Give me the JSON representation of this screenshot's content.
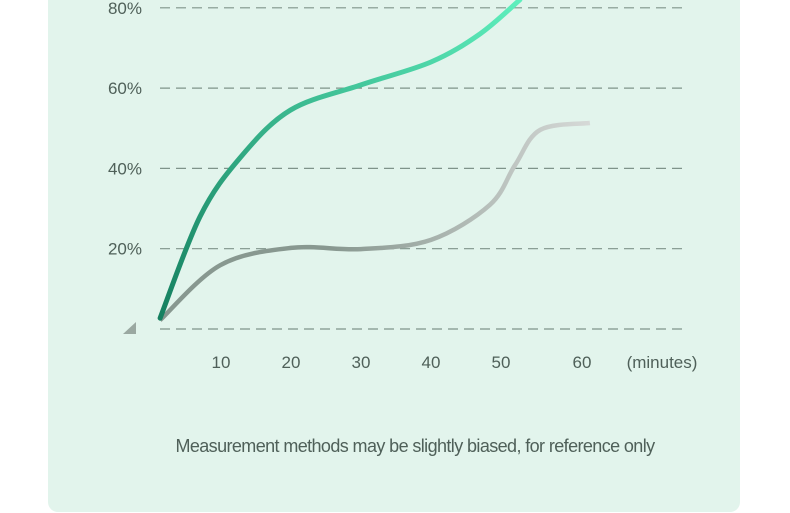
{
  "chart_data": {
    "type": "line",
    "title": "",
    "xlabel": "(minutes)",
    "ylabel": "",
    "xlim": [
      0,
      60
    ],
    "ylim": [
      0,
      80
    ],
    "x_ticks": [
      10,
      20,
      30,
      40,
      50,
      60
    ],
    "x_tick_labels": [
      "10",
      "20",
      "30",
      "40",
      "50",
      "60"
    ],
    "y_ticks": [
      0,
      20,
      40,
      60,
      80
    ],
    "y_tick_labels": [
      "",
      "20%",
      "40%",
      "60%",
      "80%"
    ],
    "grid": true,
    "series": [
      {
        "name": "green",
        "color_start": "#168060",
        "color_end": "#5eefbd",
        "x": [
          1.3,
          7,
          12.7,
          19.9,
          30,
          40,
          47,
          52.7
        ],
        "y": [
          2.7,
          28,
          42.6,
          54.5,
          60.8,
          66.5,
          73.5,
          82
        ]
      },
      {
        "name": "gray",
        "color_start": "#889890",
        "color_end": "#d6d9d7",
        "x": [
          1.3,
          9.9,
          20,
          30,
          40,
          48.4,
          52,
          55.6,
          62.7
        ],
        "y": [
          2.2,
          15.9,
          20.2,
          19.9,
          22.2,
          30.9,
          40.8,
          49.6,
          51.3
        ]
      }
    ]
  },
  "footnote": "Measurement methods may be slightly biased, for reference only"
}
